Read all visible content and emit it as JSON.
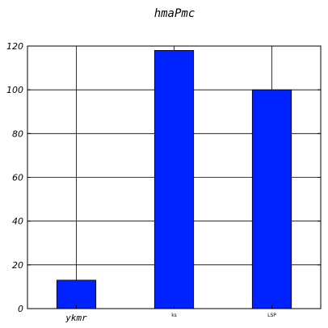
{
  "chart_data": {
    "type": "bar",
    "title": "hmaPmc",
    "categories": [
      "ykmr",
      "ks",
      "LSP"
    ],
    "values": [
      13,
      118,
      100
    ],
    "xlabel": "",
    "ylabel": "",
    "ylim": [
      0,
      120
    ],
    "yticks": [
      0,
      20,
      40,
      60,
      80,
      100,
      120
    ],
    "grid": true,
    "bar_color": "#0022ff",
    "edge_color": "#000000"
  }
}
